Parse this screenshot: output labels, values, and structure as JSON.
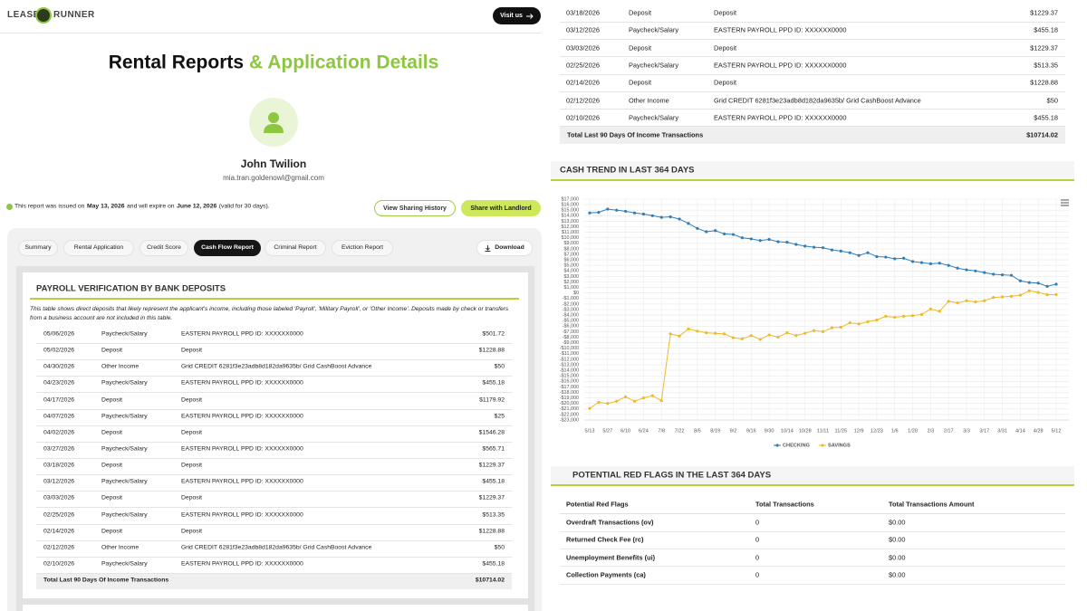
{
  "header": {
    "logo_left": "LEASE",
    "logo_right": "RUNNER",
    "visit_button": "Visit us"
  },
  "page_title": {
    "main": "Rental Reports",
    "accent": "& Application Details"
  },
  "profile": {
    "name": "John Twilion",
    "email": "mia.tran.goldenowl@gmail.com"
  },
  "notice": {
    "text1": "This report was issued on",
    "issued": "May 13, 2026",
    "text2": "and will expire on",
    "expires": "June 12, 2026",
    "text3": "(valid for 30 days)."
  },
  "actions": {
    "sharing_history": "View Sharing History",
    "share": "Share with Landlord"
  },
  "tabs": [
    "Summary",
    "Rental Application",
    "Credit Score",
    "Cash Flow Report",
    "Criminal Report",
    "Eviction Report"
  ],
  "download": "Download",
  "payroll": {
    "title": "PAYROLL VERIFICATION BY BANK DEPOSITS",
    "description": "This table shows direct deposits that likely represent the applicant's income, including those labeled 'Payroll', 'Military Payroll', or 'Other Income'. Deposits made by check or transfers from a business account are not included in this table.",
    "rows": [
      [
        "05/06/2026",
        "Paycheck/Salary",
        "EASTERN PAYROLL PPD ID: XXXXXX0000",
        "$501.72"
      ],
      [
        "05/02/2026",
        "Deposit",
        "Deposit",
        "$1228.88"
      ],
      [
        "04/30/2026",
        "Other Income",
        "Grid CREDIT 6281f3e23adb8d182da9635b/ Grid CashBoost Advance",
        "$50"
      ],
      [
        "04/23/2026",
        "Paycheck/Salary",
        "EASTERN PAYROLL PPD ID: XXXXXX0000",
        "$455.18"
      ],
      [
        "04/17/2026",
        "Deposit",
        "Deposit",
        "$1179.92"
      ],
      [
        "04/07/2026",
        "Paycheck/Salary",
        "EASTERN PAYROLL PPD ID: XXXXXX0000",
        "$25"
      ],
      [
        "04/02/2026",
        "Deposit",
        "Deposit",
        "$1546.28"
      ],
      [
        "03/27/2026",
        "Paycheck/Salary",
        "EASTERN PAYROLL PPD ID: XXXXXX0000",
        "$565.71"
      ],
      [
        "03/18/2026",
        "Deposit",
        "Deposit",
        "$1229.37"
      ],
      [
        "03/12/2026",
        "Paycheck/Salary",
        "EASTERN PAYROLL PPD ID: XXXXXX0000",
        "$455.18"
      ],
      [
        "03/03/2026",
        "Deposit",
        "Deposit",
        "$1229.37"
      ],
      [
        "02/25/2026",
        "Paycheck/Salary",
        "EASTERN PAYROLL PPD ID: XXXXXX0000",
        "$513.35"
      ],
      [
        "02/14/2026",
        "Deposit",
        "Deposit",
        "$1228.88"
      ],
      [
        "02/12/2026",
        "Other Income",
        "Grid CREDIT 6281f3e23adb8d182da9635b/ Grid CashBoost Advance",
        "$50"
      ],
      [
        "02/10/2026",
        "Paycheck/Salary",
        "EASTERN PAYROLL PPD ID: XXXXXX0000",
        "$455.18"
      ]
    ],
    "total": [
      "Total Last 90 Days Of Income Transactions",
      "$10714.02"
    ]
  },
  "payroll_continued": {
    "rows": [
      [
        "03/18/2026",
        "Deposit",
        "Deposit",
        "$1229.37"
      ],
      [
        "03/12/2026",
        "Paycheck/Salary",
        "EASTERN PAYROLL PPD ID: XXXXXX0000",
        "$455.18"
      ],
      [
        "03/03/2026",
        "Deposit",
        "Deposit",
        "$1229.37"
      ],
      [
        "02/25/2026",
        "Paycheck/Salary",
        "EASTERN PAYROLL PPD ID: XXXXXX0000",
        "$513.35"
      ],
      [
        "02/14/2026",
        "Deposit",
        "Deposit",
        "$1228.88"
      ],
      [
        "02/12/2026",
        "Other Income",
        "Grid CREDIT 6281f3e23adb8d182da9635b/ Grid CashBoost Advance",
        "$50"
      ],
      [
        "02/10/2026",
        "Paycheck/Salary",
        "EASTERN PAYROLL PPD ID: XXXXXX0000",
        "$455.18"
      ]
    ],
    "total": [
      "Total Last 90 Days Of Income Transactions",
      "$10714.02"
    ]
  },
  "chart_data": {
    "type": "line",
    "title": "CASH TREND IN LAST 364 DAYS",
    "categories": [
      "5/13",
      null,
      "5/27",
      null,
      "6/10",
      null,
      "6/24",
      null,
      "7/8",
      null,
      "7/22",
      null,
      "8/5",
      null,
      "8/19",
      null,
      "9/2",
      null,
      "9/16",
      null,
      "9/30",
      null,
      "10/14",
      null,
      "10/28",
      null,
      "11/11",
      null,
      "11/25",
      null,
      "12/9",
      null,
      "12/23",
      null,
      "1/6",
      null,
      "1/20",
      null,
      "2/3",
      null,
      "2/17",
      null,
      "3/3",
      null,
      "3/17",
      null,
      "3/31",
      null,
      "4/14",
      null,
      "4/28",
      null,
      "5/12"
    ],
    "series": [
      {
        "name": "CHECKING",
        "color": "#2f7ebc",
        "values": [
          14500,
          14600,
          15200,
          15000,
          14800,
          14500,
          14300,
          14000,
          13700,
          13800,
          13400,
          12600,
          11700,
          11100,
          11300,
          10700,
          10600,
          10000,
          9800,
          9500,
          9700,
          9300,
          9200,
          8800,
          8500,
          8300,
          8200,
          7800,
          7600,
          7300,
          6800,
          7300,
          6600,
          6500,
          6200,
          6300,
          5700,
          5500,
          5300,
          5400,
          5000,
          4500,
          4200,
          4000,
          3700,
          3400,
          3300,
          3200,
          2200,
          1900,
          1800,
          1200,
          1600
        ]
      },
      {
        "name": "SAVINGS",
        "color": "#f0b929",
        "values": [
          -20900,
          -19800,
          -20000,
          -19600,
          -18800,
          -19600,
          -19000,
          -18600,
          -19500,
          -7400,
          -7800,
          -6500,
          -6900,
          -7200,
          -7300,
          -7400,
          -8100,
          -8300,
          -7700,
          -8400,
          -7600,
          -8000,
          -7200,
          -7700,
          -7300,
          -6800,
          -7000,
          -6300,
          -6200,
          -5400,
          -5600,
          -5200,
          -4900,
          -4200,
          -4400,
          -4200,
          -4100,
          -3900,
          -2900,
          -3300,
          -1500,
          -1800,
          -1400,
          -1600,
          -1400,
          -800,
          -700,
          -600,
          -400,
          400,
          100,
          -300,
          -300
        ]
      }
    ],
    "ylim": [
      -23000,
      17000
    ],
    "yticks": [
      {
        "value": 17000,
        "label": "$17,000"
      },
      {
        "value": 16000,
        "label": "$16,000"
      },
      {
        "value": 15000,
        "label": "$15,000"
      },
      {
        "value": 14000,
        "label": "$14,000"
      },
      {
        "value": 13000,
        "label": "$13,000"
      },
      {
        "value": 12000,
        "label": "$12,000"
      },
      {
        "value": 11000,
        "label": "$11,000"
      },
      {
        "value": 10000,
        "label": "$10,000"
      },
      {
        "value": 9000,
        "label": "$9,000"
      },
      {
        "value": 8000,
        "label": "$8,000"
      },
      {
        "value": 7000,
        "label": "$7,000"
      },
      {
        "value": 6000,
        "label": "$6,000"
      },
      {
        "value": 5000,
        "label": "$5,000"
      },
      {
        "value": 4000,
        "label": "$4,000"
      },
      {
        "value": 3000,
        "label": "$3,000"
      },
      {
        "value": 2000,
        "label": "$2,000"
      },
      {
        "value": 1000,
        "label": "$1,000"
      },
      {
        "value": 0,
        "label": "$0"
      },
      {
        "value": -1000,
        "label": "-$1,000"
      },
      {
        "value": -2000,
        "label": "-$2,000"
      },
      {
        "value": -3000,
        "label": "-$3,000"
      },
      {
        "value": -4000,
        "label": "-$4,000"
      },
      {
        "value": -5000,
        "label": "-$5,000"
      },
      {
        "value": -6000,
        "label": "-$6,000"
      },
      {
        "value": -7000,
        "label": "-$7,000"
      },
      {
        "value": -8000,
        "label": "-$8,000"
      },
      {
        "value": -9000,
        "label": "-$9,000"
      },
      {
        "value": -10000,
        "label": "-$10,000"
      },
      {
        "value": -11000,
        "label": "-$11,000"
      },
      {
        "value": -12000,
        "label": "-$12,000"
      },
      {
        "value": -13000,
        "label": "-$13,000"
      },
      {
        "value": -14000,
        "label": "-$14,000"
      },
      {
        "value": -15000,
        "label": "-$15,000"
      },
      {
        "value": -16000,
        "label": "-$16,000"
      },
      {
        "value": -17000,
        "label": "-$17,000"
      },
      {
        "value": -18000,
        "label": "-$18,000"
      },
      {
        "value": -19000,
        "label": "-$19,000"
      },
      {
        "value": -20000,
        "label": "-$20,000"
      },
      {
        "value": -21000,
        "label": "-$21,000"
      },
      {
        "value": -22000,
        "label": "-$22,000"
      },
      {
        "value": -23000,
        "label": "-$23,000"
      }
    ],
    "grid": true,
    "legend": "bottom"
  },
  "red_flags": {
    "title": "POTENTIAL RED FLAGS IN THE LAST 364 DAYS",
    "headers": [
      "Potential Red Flags",
      "Total Transactions",
      "Total Transactions Amount"
    ],
    "rows": [
      [
        "Overdraft Transactions (ov)",
        "0",
        "$0.00"
      ],
      [
        "Returned Check Fee (rc)",
        "0",
        "$0.00"
      ],
      [
        "Unemployment Benefits (ui)",
        "0",
        "$0.00"
      ],
      [
        "Collection Payments (ca)",
        "0",
        "$0.00"
      ]
    ]
  }
}
